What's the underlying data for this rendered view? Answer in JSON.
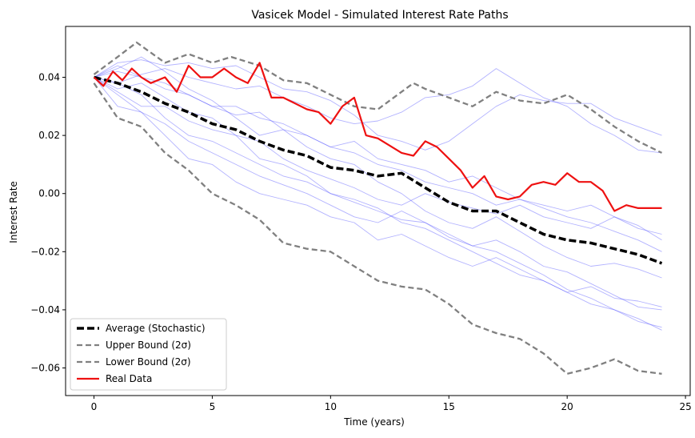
{
  "chart_data": {
    "type": "line",
    "title": "Vasicek Model - Simulated Interest Rate Paths",
    "xlabel": "Time (years)",
    "ylabel": "Interest Rate",
    "xlim": [
      -1.2,
      25.2
    ],
    "ylim": [
      -0.0695,
      0.0575
    ],
    "xticks": [
      0,
      5,
      10,
      15,
      20,
      25
    ],
    "xtick_labels": [
      "0",
      "5",
      "10",
      "15",
      "20",
      "25"
    ],
    "yticks": [
      -0.06,
      -0.04,
      -0.02,
      0.0,
      0.02,
      0.04
    ],
    "ytick_labels": [
      "−0.06",
      "−0.04",
      "−0.02",
      "0.00",
      "0.02",
      "0.04"
    ],
    "grid": false,
    "legend_position": "lower-left",
    "colors": {
      "average": "#000000",
      "bounds": "#808080",
      "real": "#ee1111",
      "paths": "#5555ff"
    },
    "legend": [
      {
        "label": "Average (Stochastic)",
        "style": "average"
      },
      {
        "label": "Upper Bound (2σ)",
        "style": "upper"
      },
      {
        "label": "Lower Bound (2σ)",
        "style": "lower"
      },
      {
        "label": "Real Data",
        "style": "real"
      }
    ],
    "series": [
      {
        "name": "Average (Stochastic)",
        "style": "average",
        "x": [
          0,
          1,
          2,
          3,
          4,
          5,
          6,
          7,
          8,
          9,
          10,
          11,
          12,
          13,
          14,
          15,
          16,
          17,
          18,
          19,
          20,
          21,
          22,
          23,
          24
        ],
        "y": [
          0.04,
          0.038,
          0.035,
          0.031,
          0.028,
          0.024,
          0.022,
          0.018,
          0.015,
          0.013,
          0.009,
          0.008,
          0.006,
          0.007,
          0.002,
          -0.003,
          -0.006,
          -0.006,
          -0.01,
          -0.014,
          -0.016,
          -0.017,
          -0.019,
          -0.021,
          -0.024
        ]
      },
      {
        "name": "Upper Bound (2σ)",
        "style": "upper",
        "x": [
          0,
          1,
          1.8,
          3,
          4,
          5,
          5.8,
          7,
          8,
          9,
          10,
          11,
          12,
          13,
          13.5,
          14,
          15,
          16,
          17,
          18,
          19,
          20,
          21,
          22,
          23,
          24
        ],
        "y": [
          0.041,
          0.047,
          0.052,
          0.045,
          0.048,
          0.045,
          0.047,
          0.044,
          0.039,
          0.038,
          0.034,
          0.03,
          0.029,
          0.035,
          0.038,
          0.036,
          0.033,
          0.03,
          0.035,
          0.032,
          0.031,
          0.034,
          0.029,
          0.023,
          0.018,
          0.014
        ]
      },
      {
        "name": "Lower Bound (2σ)",
        "style": "lower",
        "x": [
          0,
          1,
          2,
          3,
          4,
          5,
          6,
          7,
          8,
          9,
          10,
          11,
          12,
          13,
          14,
          15,
          16,
          17,
          18,
          19,
          20,
          21,
          22,
          23,
          24
        ],
        "y": [
          0.038,
          0.026,
          0.023,
          0.014,
          0.008,
          0.0,
          -0.004,
          -0.009,
          -0.017,
          -0.019,
          -0.02,
          -0.025,
          -0.03,
          -0.032,
          -0.033,
          -0.038,
          -0.045,
          -0.048,
          -0.05,
          -0.055,
          -0.062,
          -0.06,
          -0.057,
          -0.061,
          -0.062
        ]
      },
      {
        "name": "Real Data",
        "style": "real",
        "x": [
          0,
          0.4,
          0.8,
          1.2,
          1.6,
          2,
          2.4,
          3,
          3.5,
          4,
          4.5,
          5,
          5.5,
          6,
          6.5,
          7,
          7.5,
          8,
          8.5,
          9,
          9.5,
          10,
          10.5,
          11,
          11.5,
          12,
          13,
          13.5,
          14,
          14.5,
          15,
          15.5,
          16,
          16.5,
          17,
          17.5,
          18,
          18.5,
          19,
          19.5,
          20,
          20.5,
          21,
          21.5,
          22,
          22.5,
          23,
          23.5,
          24
        ],
        "y": [
          0.04,
          0.037,
          0.042,
          0.039,
          0.043,
          0.04,
          0.038,
          0.04,
          0.035,
          0.044,
          0.04,
          0.04,
          0.043,
          0.04,
          0.038,
          0.045,
          0.033,
          0.033,
          0.031,
          0.029,
          0.028,
          0.024,
          0.03,
          0.033,
          0.02,
          0.019,
          0.014,
          0.013,
          0.018,
          0.016,
          0.012,
          0.008,
          0.002,
          0.006,
          -0.001,
          -0.002,
          -0.001,
          0.003,
          0.004,
          0.003,
          0.007,
          0.004,
          0.004,
          0.001,
          -0.006,
          -0.004,
          -0.005,
          -0.005,
          -0.005
        ]
      },
      {
        "name": "Path 1",
        "style": "path",
        "x": [
          0,
          1,
          2,
          3,
          4,
          5,
          6,
          7,
          8,
          9,
          10,
          11,
          12,
          13,
          14,
          15,
          16,
          17,
          18,
          19,
          20,
          21,
          22,
          23,
          24
        ],
        "y": [
          0.04,
          0.045,
          0.046,
          0.044,
          0.045,
          0.043,
          0.044,
          0.04,
          0.036,
          0.035,
          0.032,
          0.027,
          0.02,
          0.018,
          0.015,
          0.018,
          0.024,
          0.03,
          0.034,
          0.032,
          0.031,
          0.031,
          0.026,
          0.023,
          0.02
        ]
      },
      {
        "name": "Path 2",
        "style": "path",
        "x": [
          0,
          1,
          2,
          3,
          4,
          5,
          6,
          7,
          8,
          9,
          10,
          11,
          12,
          13,
          14,
          15,
          16,
          17,
          18,
          19,
          20,
          21,
          22,
          23,
          24
        ],
        "y": [
          0.04,
          0.038,
          0.041,
          0.043,
          0.04,
          0.038,
          0.036,
          0.037,
          0.033,
          0.03,
          0.026,
          0.024,
          0.025,
          0.028,
          0.033,
          0.034,
          0.037,
          0.043,
          0.038,
          0.033,
          0.03,
          0.024,
          0.02,
          0.015,
          0.014
        ]
      },
      {
        "name": "Path 3",
        "style": "path",
        "x": [
          0,
          1,
          2,
          3,
          4,
          5,
          6,
          7,
          8,
          9,
          10,
          11,
          12,
          13,
          14,
          15,
          16,
          17,
          18,
          19,
          20,
          21,
          22,
          23,
          24
        ],
        "y": [
          0.04,
          0.035,
          0.03,
          0.03,
          0.025,
          0.022,
          0.02,
          0.018,
          0.012,
          0.008,
          0.005,
          0.002,
          -0.002,
          -0.004,
          0.0,
          -0.003,
          -0.005,
          -0.007,
          -0.004,
          -0.008,
          -0.01,
          -0.012,
          -0.008,
          -0.011,
          -0.016
        ]
      },
      {
        "name": "Path 4",
        "style": "path",
        "x": [
          0,
          1,
          2,
          3,
          4,
          5,
          6,
          7,
          8,
          9,
          10,
          11,
          12,
          13,
          14,
          15,
          16,
          17,
          18,
          19,
          20,
          21,
          22,
          23,
          24
        ],
        "y": [
          0.04,
          0.03,
          0.028,
          0.024,
          0.018,
          0.014,
          0.01,
          0.006,
          0.003,
          0.0,
          -0.004,
          -0.008,
          -0.01,
          -0.006,
          -0.01,
          -0.015,
          -0.018,
          -0.016,
          -0.02,
          -0.025,
          -0.027,
          -0.031,
          -0.035,
          -0.039,
          -0.04
        ]
      },
      {
        "name": "Path 5",
        "style": "path",
        "x": [
          0,
          1,
          2,
          3,
          4,
          5,
          6,
          7,
          8,
          9,
          10,
          11,
          12,
          13,
          14,
          15,
          16,
          17,
          18,
          19,
          20,
          21,
          22,
          23,
          24
        ],
        "y": [
          0.04,
          0.036,
          0.038,
          0.033,
          0.028,
          0.026,
          0.02,
          0.012,
          0.01,
          0.006,
          0.0,
          -0.002,
          -0.005,
          -0.01,
          -0.012,
          -0.016,
          -0.02,
          -0.024,
          -0.028,
          -0.03,
          -0.034,
          -0.038,
          -0.04,
          -0.043,
          -0.047
        ]
      },
      {
        "name": "Path 6",
        "style": "path",
        "x": [
          0,
          1,
          2,
          3,
          4,
          5,
          6,
          7,
          8,
          9,
          10,
          11,
          12,
          13,
          14,
          15,
          16,
          17,
          18,
          19,
          20,
          21,
          22,
          23,
          24
        ],
        "y": [
          0.04,
          0.042,
          0.04,
          0.036,
          0.034,
          0.03,
          0.027,
          0.028,
          0.022,
          0.02,
          0.016,
          0.014,
          0.01,
          0.008,
          0.004,
          0.002,
          0.0,
          -0.004,
          -0.002,
          -0.005,
          -0.008,
          -0.01,
          -0.013,
          -0.016,
          -0.02
        ]
      },
      {
        "name": "Path 7",
        "style": "path",
        "x": [
          0,
          1,
          2,
          3,
          4,
          5,
          6,
          7,
          8,
          9,
          10,
          11,
          12,
          13,
          14,
          15,
          16,
          17,
          18,
          19,
          20,
          21,
          22,
          23,
          24
        ],
        "y": [
          0.04,
          0.034,
          0.028,
          0.02,
          0.012,
          0.01,
          0.004,
          0.0,
          -0.002,
          -0.004,
          -0.008,
          -0.01,
          -0.016,
          -0.014,
          -0.018,
          -0.022,
          -0.025,
          -0.022,
          -0.026,
          -0.03,
          -0.034,
          -0.032,
          -0.036,
          -0.037,
          -0.039
        ]
      },
      {
        "name": "Path 8",
        "style": "path",
        "x": [
          0,
          1,
          2,
          3,
          4,
          5,
          6,
          7,
          8,
          9,
          10,
          11,
          12,
          13,
          14,
          15,
          16,
          17,
          18,
          19,
          20,
          21,
          22,
          23,
          24
        ],
        "y": [
          0.04,
          0.043,
          0.047,
          0.042,
          0.036,
          0.032,
          0.026,
          0.02,
          0.022,
          0.016,
          0.012,
          0.01,
          0.004,
          0.0,
          -0.006,
          -0.01,
          -0.012,
          -0.008,
          -0.013,
          -0.018,
          -0.022,
          -0.025,
          -0.024,
          -0.026,
          -0.029
        ]
      },
      {
        "name": "Path 9",
        "style": "path",
        "x": [
          0,
          1,
          2,
          3,
          4,
          5,
          6,
          7,
          8,
          9,
          10,
          11,
          12,
          13,
          14,
          15,
          16,
          17,
          18,
          19,
          20,
          21,
          22,
          23,
          24
        ],
        "y": [
          0.04,
          0.038,
          0.034,
          0.026,
          0.02,
          0.018,
          0.014,
          0.01,
          0.006,
          0.004,
          0.0,
          -0.003,
          -0.006,
          -0.009,
          -0.01,
          -0.014,
          -0.018,
          -0.02,
          -0.024,
          -0.028,
          -0.033,
          -0.036,
          -0.04,
          -0.044,
          -0.046
        ]
      },
      {
        "name": "Path 10",
        "style": "path",
        "x": [
          0,
          1,
          2,
          3,
          4,
          5,
          6,
          7,
          8,
          9,
          10,
          11,
          12,
          13,
          14,
          15,
          16,
          17,
          18,
          19,
          20,
          21,
          22,
          23,
          24
        ],
        "y": [
          0.04,
          0.044,
          0.04,
          0.038,
          0.034,
          0.03,
          0.03,
          0.026,
          0.024,
          0.02,
          0.016,
          0.018,
          0.012,
          0.01,
          0.008,
          0.004,
          0.006,
          0.002,
          -0.002,
          -0.004,
          -0.006,
          -0.004,
          -0.008,
          -0.012,
          -0.014
        ]
      }
    ]
  }
}
